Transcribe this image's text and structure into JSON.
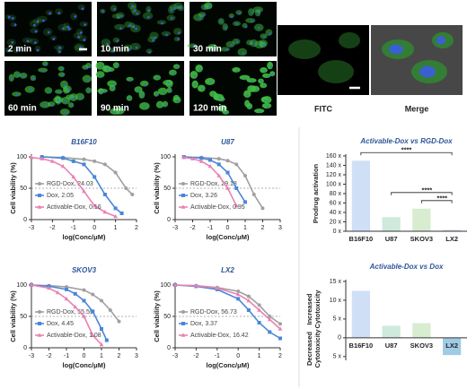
{
  "images": {
    "time_labels": [
      "2 min",
      "10 min",
      "30 min",
      "60 min",
      "90 min",
      "120 min"
    ],
    "single_cell": [
      "FITC",
      "Merge"
    ]
  },
  "chart_data": [
    {
      "type": "line",
      "title": "B16F10",
      "xlabel": "log(Conc/μM)",
      "ylabel": "Cell viability (%)",
      "xlim": [
        -3,
        2
      ],
      "xticks": [
        -3,
        -2,
        -1,
        0,
        1,
        2
      ],
      "ylim": [
        0,
        100
      ],
      "yticks": [
        0,
        50,
        100
      ],
      "hline": 50,
      "series": [
        {
          "name": "RGD-Dox, 24.03",
          "color": "#a0a0a0",
          "marker": "circle",
          "x": [
            -2.5,
            -1.5,
            -0.5,
            0,
            0.5,
            1,
            1.5,
            1.8
          ],
          "values": [
            100,
            99,
            96,
            93,
            88,
            75,
            50,
            40
          ]
        },
        {
          "name": "Dox, 2.05",
          "color": "#4a86d8",
          "marker": "square",
          "x": [
            -2.5,
            -1.5,
            -1,
            -0.5,
            0,
            0.5,
            1,
            1.3
          ],
          "values": [
            100,
            98,
            93,
            88,
            68,
            40,
            18,
            10
          ]
        },
        {
          "name": "Activable-Dox, 0.16",
          "color": "#e882b4",
          "marker": "triangle",
          "x": [
            -3,
            -2.5,
            -2,
            -1.5,
            -1,
            -0.5,
            0,
            0.5,
            1
          ],
          "values": [
            99,
            97,
            93,
            85,
            68,
            45,
            22,
            12,
            5
          ]
        }
      ]
    },
    {
      "type": "line",
      "title": "U87",
      "xlabel": "log(Conc/μM)",
      "ylabel": "Cell viability (%)",
      "xlim": [
        -3,
        3
      ],
      "xticks": [
        -3,
        -2,
        -1,
        0,
        1,
        2,
        3
      ],
      "ylim": [
        0,
        100
      ],
      "yticks": [
        0,
        50,
        100
      ],
      "hline": 50,
      "series": [
        {
          "name": "RGD-Dox, 29.18",
          "color": "#a0a0a0",
          "marker": "circle",
          "x": [
            -2.5,
            -1.5,
            -0.5,
            0,
            0.5,
            1,
            1.5,
            2
          ],
          "values": [
            100,
            99,
            97,
            94,
            88,
            70,
            40,
            18
          ]
        },
        {
          "name": "Dox, 3.26",
          "color": "#4a86d8",
          "marker": "square",
          "x": [
            -2.5,
            -1.5,
            -1,
            -0.5,
            0,
            0.5,
            1
          ],
          "values": [
            100,
            98,
            95,
            88,
            75,
            50,
            28
          ]
        },
        {
          "name": "Activable-Dox, 0.95",
          "color": "#e882b4",
          "marker": "triangle",
          "x": [
            -2.5,
            -2,
            -1.5,
            -1,
            -0.5,
            0,
            0.5
          ],
          "values": [
            99,
            97,
            93,
            85,
            70,
            50,
            22
          ]
        }
      ]
    },
    {
      "type": "line",
      "title": "SKOV3",
      "xlabel": "log(Conc/μM)",
      "ylabel": "Cell viability (%)",
      "xlim": [
        -3,
        3
      ],
      "xticks": [
        -3,
        -2,
        -1,
        0,
        1,
        2,
        3
      ],
      "ylim": [
        0,
        100
      ],
      "yticks": [
        0,
        50,
        100
      ],
      "hline": 50,
      "series": [
        {
          "name": "RGD-Dox, 55.59",
          "color": "#a0a0a0",
          "marker": "circle",
          "x": [
            -3,
            -2,
            -1,
            0,
            0.5,
            1,
            1.5,
            2
          ],
          "values": [
            100,
            99,
            97,
            92,
            85,
            75,
            60,
            42
          ]
        },
        {
          "name": "Dox, 4.45",
          "color": "#4a86d8",
          "marker": "square",
          "x": [
            -3,
            -2,
            -1,
            -0.5,
            0,
            0.5,
            1,
            1.3
          ],
          "values": [
            100,
            98,
            93,
            86,
            75,
            58,
            30,
            12
          ]
        },
        {
          "name": "Activable-Dox, 1.08",
          "color": "#e882b4",
          "marker": "triangle",
          "x": [
            -3,
            -2,
            -1.5,
            -1,
            -0.5,
            0,
            0.5,
            1
          ],
          "values": [
            100,
            95,
            88,
            78,
            65,
            50,
            20,
            5
          ]
        }
      ]
    },
    {
      "type": "line",
      "title": "LX2",
      "xlabel": "log(Conc/μM)",
      "ylabel": "Cell viability (%)",
      "xlim": [
        -3,
        2
      ],
      "xticks": [
        -3,
        -2,
        -1,
        0,
        1,
        2
      ],
      "ylim": [
        0,
        100
      ],
      "yticks": [
        0,
        50,
        100
      ],
      "hline": 50,
      "series": [
        {
          "name": "RGD-Dox, 56.73",
          "color": "#a0a0a0",
          "marker": "circle",
          "x": [
            -3,
            -2,
            -1,
            0,
            0.5,
            1,
            1.5,
            2
          ],
          "values": [
            100,
            99,
            96,
            90,
            82,
            68,
            50,
            38
          ]
        },
        {
          "name": "Dox, 3.37",
          "color": "#4a86d8",
          "marker": "square",
          "x": [
            -3,
            -2,
            -1,
            0,
            0.5,
            1,
            1.5,
            2
          ],
          "values": [
            100,
            98,
            93,
            78,
            60,
            40,
            25,
            15
          ]
        },
        {
          "name": "Activable-Dox, 16.42",
          "color": "#e882b4",
          "marker": "triangle",
          "x": [
            -3,
            -2,
            -1,
            0,
            0.5,
            1,
            1.5,
            2
          ],
          "values": [
            100,
            99,
            95,
            85,
            75,
            60,
            45,
            30
          ]
        }
      ]
    },
    {
      "type": "bar",
      "title": "Activable-Dox vs RGD-Dox",
      "ylabel": "Prodrug activation",
      "categories": [
        "B16F10",
        "U87",
        "SKOV3",
        "LX2"
      ],
      "values": [
        150,
        30,
        48,
        3
      ],
      "colors": [
        "#cfe0f6",
        "#cfe9dd",
        "#d8ecd0",
        "#d9dcef"
      ],
      "ylim": [
        0,
        160
      ],
      "yticks": [
        {
          "value": 0,
          "label": "0 x"
        },
        {
          "value": 20,
          "label": "20 x"
        },
        {
          "value": 40,
          "label": "40 x"
        },
        {
          "value": 60,
          "label": "60 x"
        },
        {
          "value": 80,
          "label": "80 x"
        },
        {
          "value": 100,
          "label": "100 x"
        },
        {
          "value": 120,
          "label": "120 x"
        },
        {
          "value": 140,
          "label": "140 x"
        },
        {
          "value": 160,
          "label": "160 x"
        }
      ],
      "annotations": [
        {
          "text": "****",
          "between": [
            "B16F10",
            "LX2"
          ]
        },
        {
          "text": "****",
          "between": [
            "U87",
            "LX2"
          ]
        },
        {
          "text": "****",
          "between": [
            "SKOV3",
            "LX2"
          ]
        }
      ]
    },
    {
      "type": "bar",
      "title": "Activable-Dox vs Dox",
      "ylabel_upper": "Increased Cytotoxicity",
      "ylabel_lower": "Decreased Cytotoxicity",
      "categories": [
        "B16F10",
        "U87",
        "SKOV3",
        "LX2"
      ],
      "values": [
        12.5,
        3.2,
        3.9,
        -4.6
      ],
      "colors": [
        "#cfe0f6",
        "#cfe9dd",
        "#d8ecd0",
        "#9fcbe4"
      ],
      "ylim": [
        -6,
        15
      ],
      "yticks": [
        {
          "value": -5,
          "label": "5 x"
        },
        0,
        {
          "value": 5,
          "label": "5 x"
        },
        {
          "value": 10,
          "label": "10 x"
        },
        {
          "value": 15,
          "label": "15 x"
        }
      ]
    }
  ]
}
